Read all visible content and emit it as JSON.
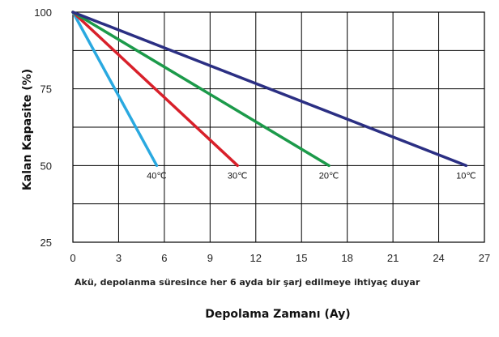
{
  "chart_data": {
    "type": "line",
    "ylabel": "Kalan Kapasite (%)",
    "xlabel": "Depolama Zamanı (Ay)",
    "note": "Akü, depolanma süresince her 6 ayda bir şarj edilmeye ihtiyaç duyar",
    "xlim": [
      0,
      27
    ],
    "ylim": [
      25,
      100
    ],
    "x_ticks": [
      0,
      3,
      6,
      9,
      12,
      15,
      18,
      21,
      24,
      27
    ],
    "y_ticks": [
      25,
      50,
      75,
      100
    ],
    "grid": true,
    "series": [
      {
        "name": "40℃",
        "color": "#2aa9e0",
        "points": [
          [
            0,
            100
          ],
          [
            5.5,
            50
          ]
        ]
      },
      {
        "name": "30℃",
        "color": "#d8202a",
        "points": [
          [
            0,
            100
          ],
          [
            10.8,
            50
          ]
        ]
      },
      {
        "name": "20℃",
        "color": "#1c9a4a",
        "points": [
          [
            0,
            100
          ],
          [
            16.8,
            50
          ]
        ]
      },
      {
        "name": "10℃",
        "color": "#2b2f83",
        "points": [
          [
            0,
            100
          ],
          [
            25.8,
            50
          ]
        ]
      }
    ]
  }
}
